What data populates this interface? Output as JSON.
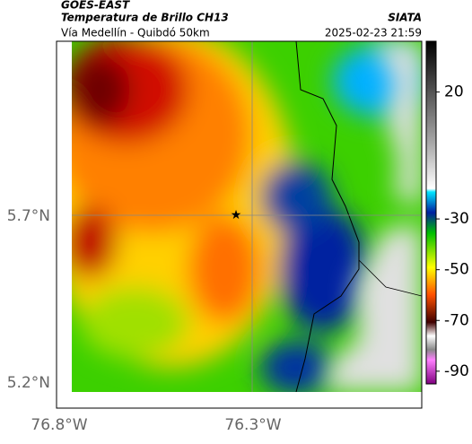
{
  "header": {
    "source": "GOES-EAST",
    "product": "Temperatura de Brillo CH13",
    "org": "SIATA",
    "route": "Vía Medellín - Quibdó 50km",
    "datetime": "2025-02-23 21:59"
  },
  "map": {
    "lat_labels": [
      "5.7°N",
      "5.2°N"
    ],
    "lon_labels": [
      "76.8°W",
      "76.3°W"
    ]
  },
  "colorbar": {
    "lim": [
      40,
      -95
    ],
    "ticks": [
      20,
      -30,
      -50,
      -70,
      -90
    ]
  }
}
